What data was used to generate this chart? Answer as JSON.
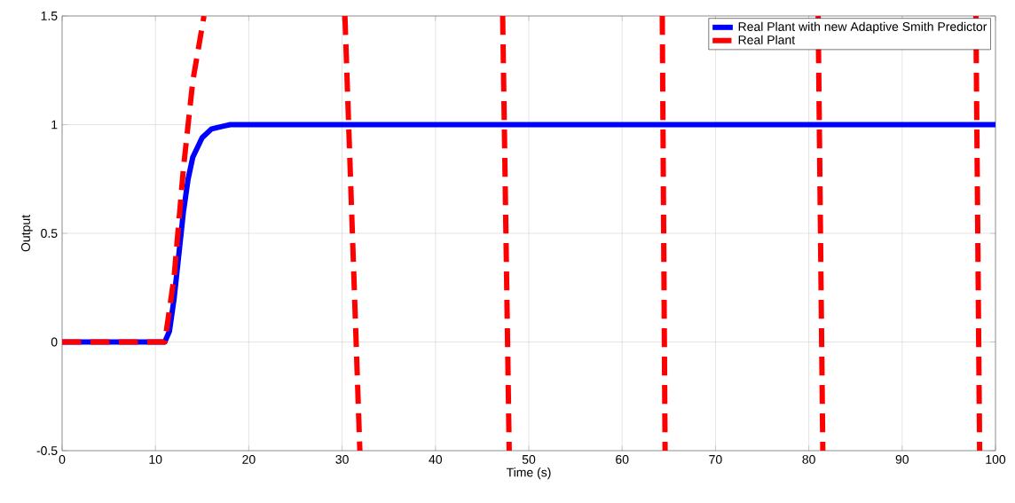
{
  "chart_data": {
    "type": "line",
    "xlabel": "Time (s)",
    "ylabel": "Output",
    "xlim": [
      0,
      100
    ],
    "ylim": [
      -0.5,
      1.5
    ],
    "xticks": [
      0,
      10,
      20,
      30,
      40,
      50,
      60,
      70,
      80,
      90,
      100
    ],
    "yticks": [
      -0.5,
      0,
      0.5,
      1,
      1.5
    ],
    "grid": true,
    "legend": "top right",
    "series": [
      {
        "name": "Real Plant  with new Adaptive Smith Predictor",
        "color": "#0000ff",
        "line_style": "solid",
        "x": [
          0,
          11,
          11.5,
          12,
          12.5,
          13,
          13.5,
          14,
          15,
          16,
          17,
          18,
          20,
          100
        ],
        "values": [
          0,
          0,
          0.05,
          0.2,
          0.4,
          0.6,
          0.75,
          0.85,
          0.94,
          0.98,
          0.99,
          1,
          1,
          1
        ]
      },
      {
        "name": "Real Plant",
        "color": "#ff0000",
        "line_style": "dashed",
        "x": [
          0,
          11,
          12,
          13,
          14,
          15.2,
          15.3,
          30.3,
          31.9,
          32,
          47.2,
          47.9,
          48,
          64.3,
          64.6,
          64.7,
          81.0,
          81.5,
          81.6,
          97.9,
          98.3
        ],
        "values": [
          0,
          0,
          0.3,
          0.8,
          1.2,
          1.5,
          null,
          1.5,
          -0.5,
          null,
          1.5,
          -0.5,
          null,
          1.5,
          -0.5,
          null,
          1.5,
          -0.5,
          null,
          1.5,
          -0.5
        ]
      }
    ]
  }
}
